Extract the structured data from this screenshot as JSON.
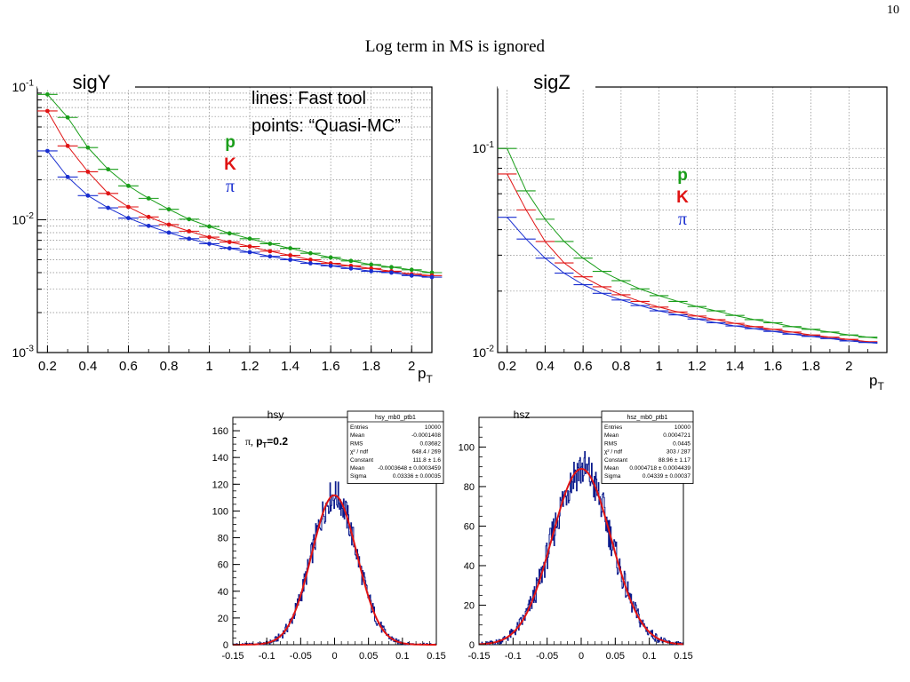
{
  "page": {
    "number": "10",
    "title": "Log term in MS is ignored"
  },
  "colors": {
    "p": "#1a9e1a",
    "K": "#e01414",
    "pi": "#1a2fd0",
    "fit": "#e01414",
    "hist": "#0a1a8c"
  },
  "chart_data": [
    {
      "type": "line",
      "pad_title": "sigY",
      "title": "sigY",
      "xlabel": "p_T",
      "ylabel": "",
      "yscale": "log",
      "xlim": [
        0.15,
        2.1
      ],
      "ylim": [
        0.001,
        0.1
      ],
      "grid": true,
      "x_ticks": [
        "0.2",
        "0.4",
        "0.6",
        "0.8",
        "1",
        "1.2",
        "1.4",
        "1.6",
        "1.8",
        "2"
      ],
      "y_ticks": [
        "10^-3",
        "10^-2",
        "10^-1"
      ],
      "annotations": [
        "lines: Fast tool",
        "points: “Quasi-MC”"
      ],
      "legend": [
        {
          "label": "p",
          "series": "p"
        },
        {
          "label": "K",
          "series": "K"
        },
        {
          "label": "π",
          "series": "pi"
        }
      ],
      "x": [
        0.2,
        0.3,
        0.4,
        0.5,
        0.6,
        0.7,
        0.8,
        0.9,
        1.0,
        1.1,
        1.2,
        1.3,
        1.4,
        1.5,
        1.6,
        1.7,
        1.8,
        1.9,
        2.0,
        2.1
      ],
      "series": [
        {
          "name": "p",
          "values": [
            0.088,
            0.059,
            0.035,
            0.024,
            0.018,
            0.0145,
            0.012,
            0.0101,
            0.0089,
            0.0079,
            0.0072,
            0.0066,
            0.0061,
            0.0056,
            0.0052,
            0.0049,
            0.0046,
            0.0044,
            0.0042,
            0.004
          ]
        },
        {
          "name": "K",
          "values": [
            0.066,
            0.036,
            0.023,
            0.0158,
            0.0125,
            0.0105,
            0.0092,
            0.0082,
            0.0074,
            0.0068,
            0.0063,
            0.0058,
            0.0054,
            0.005,
            0.0047,
            0.0045,
            0.0043,
            0.0041,
            0.0039,
            0.0038
          ]
        },
        {
          "name": "π",
          "values": [
            0.033,
            0.021,
            0.0152,
            0.0123,
            0.0103,
            0.009,
            0.008,
            0.0072,
            0.0066,
            0.0061,
            0.0057,
            0.0053,
            0.005,
            0.0047,
            0.0045,
            0.0043,
            0.0041,
            0.004,
            0.0038,
            0.0037
          ]
        }
      ]
    },
    {
      "type": "line",
      "pad_title": "sigZ",
      "title": "sigZ",
      "xlabel": "p_T",
      "ylabel": "",
      "yscale": "log",
      "xlim": [
        0.15,
        2.2
      ],
      "ylim": [
        0.01,
        0.2
      ],
      "grid": true,
      "x_ticks": [
        "0.2",
        "0.4",
        "0.6",
        "0.8",
        "1",
        "1.2",
        "1.4",
        "1.6",
        "1.8",
        "2"
      ],
      "y_ticks": [
        "10^-2",
        "10^-1"
      ],
      "legend": [
        {
          "label": "p",
          "series": "p"
        },
        {
          "label": "K",
          "series": "K"
        },
        {
          "label": "π",
          "series": "pi"
        }
      ],
      "x": [
        0.2,
        0.3,
        0.4,
        0.5,
        0.6,
        0.7,
        0.8,
        0.9,
        1.0,
        1.1,
        1.2,
        1.3,
        1.4,
        1.5,
        1.6,
        1.7,
        1.8,
        1.9,
        2.0,
        2.1
      ],
      "series": [
        {
          "name": "p",
          "values": [
            0.1,
            0.062,
            0.045,
            0.035,
            0.029,
            0.025,
            0.0225,
            0.0205,
            0.019,
            0.0178,
            0.0168,
            0.016,
            0.0152,
            0.0145,
            0.014,
            0.0134,
            0.013,
            0.0126,
            0.0122,
            0.0119
          ]
        },
        {
          "name": "K",
          "values": [
            0.075,
            0.05,
            0.035,
            0.0275,
            0.0235,
            0.021,
            0.0192,
            0.0178,
            0.0167,
            0.0158,
            0.0151,
            0.0145,
            0.0139,
            0.0134,
            0.013,
            0.0126,
            0.0122,
            0.0119,
            0.0116,
            0.0113
          ]
        },
        {
          "name": "π",
          "values": [
            0.046,
            0.036,
            0.029,
            0.0245,
            0.0215,
            0.0195,
            0.0181,
            0.017,
            0.016,
            0.0153,
            0.0146,
            0.014,
            0.0135,
            0.0131,
            0.0127,
            0.0123,
            0.012,
            0.0117,
            0.0114,
            0.0112
          ]
        }
      ]
    },
    {
      "type": "bar",
      "pad_title": "hsy",
      "title": "hsy",
      "annotation": "π, p_T=0.2",
      "xlim": [
        -0.15,
        0.15
      ],
      "ylim": [
        0,
        170
      ],
      "x_ticks": [
        "-0.15",
        "-0.1",
        "-0.05",
        "0",
        "0.05",
        "0.1",
        "0.15"
      ],
      "y_ticks": [
        "0",
        "20",
        "40",
        "60",
        "80",
        "100",
        "120",
        "140",
        "160"
      ],
      "fit": {
        "type": "gaussian",
        "constant": 111.8,
        "mean": -0.0003648,
        "sigma": 0.03336
      },
      "stats": {
        "name": "hsy_mb0_ptb1",
        "rows": [
          [
            "Entries",
            "10000"
          ],
          [
            "Mean",
            "-0.0001408"
          ],
          [
            "RMS",
            "0.03682"
          ],
          [
            "χ² / ndf",
            "648.4 / 269"
          ],
          [
            "Constant",
            "111.8 ± 1.6"
          ],
          [
            "Mean",
            "-0.0003648 ± 0.0003459"
          ],
          [
            "Sigma",
            "0.03336 ± 0.00035"
          ]
        ]
      }
    },
    {
      "type": "bar",
      "pad_title": "hsz",
      "title": "hsz",
      "xlim": [
        -0.15,
        0.15
      ],
      "ylim": [
        0,
        115
      ],
      "x_ticks": [
        "-0.15",
        "-0.1",
        "-0.05",
        "0",
        "0.05",
        "0.1",
        "0.15"
      ],
      "y_ticks": [
        "0",
        "20",
        "40",
        "60",
        "80",
        "100"
      ],
      "fit": {
        "type": "gaussian",
        "constant": 88.96,
        "mean": 0.0004718,
        "sigma": 0.04339
      },
      "stats": {
        "name": "hsz_mb0_ptb1",
        "rows": [
          [
            "Entries",
            "10000"
          ],
          [
            "Mean",
            "0.0004721"
          ],
          [
            "RMS",
            "0.0445"
          ],
          [
            "χ² / ndf",
            "303 / 287"
          ],
          [
            "Constant",
            "88.96 ± 1.17"
          ],
          [
            "Mean",
            "0.0004718 ± 0.0004439"
          ],
          [
            "Sigma",
            "0.04339 ± 0.00037"
          ]
        ]
      }
    }
  ]
}
